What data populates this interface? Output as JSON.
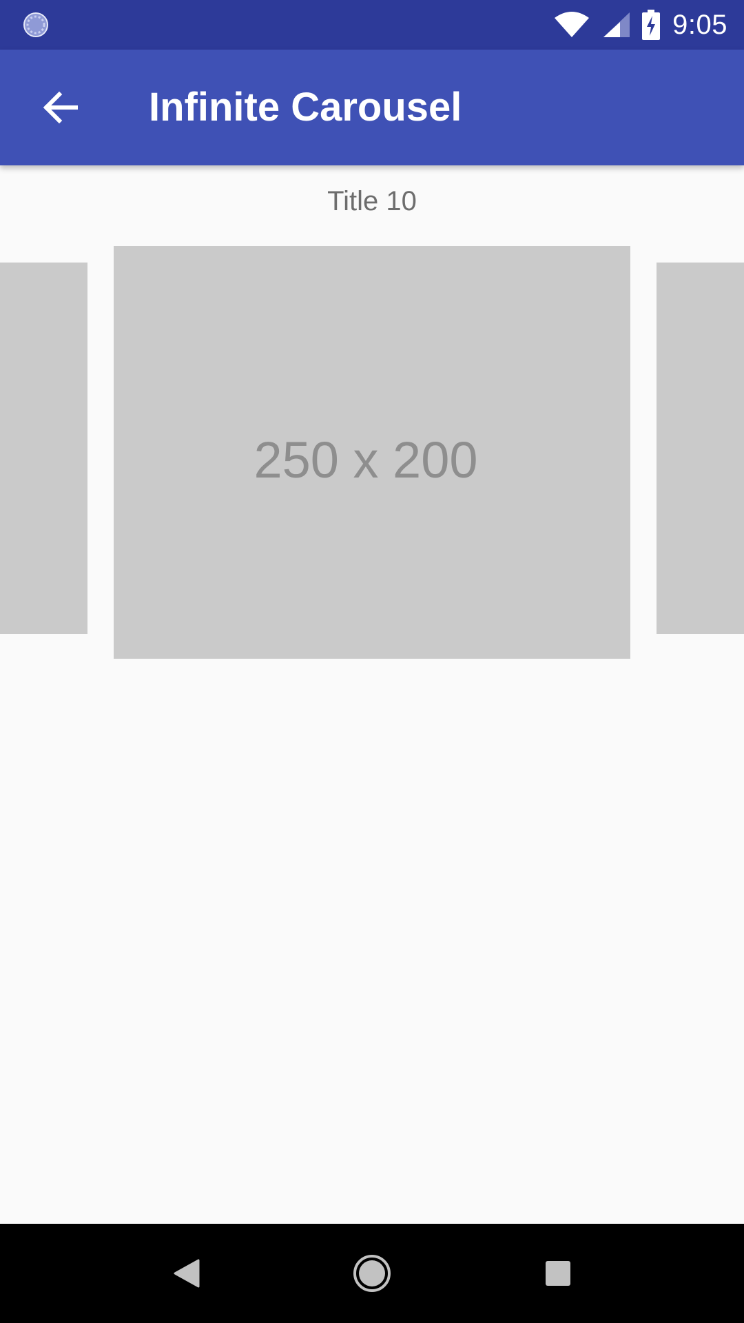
{
  "status_bar": {
    "time": "9:05",
    "left_icon": "loading-spinner-icon",
    "right_icons": [
      "wifi-icon",
      "cellular-signal-icon",
      "battery-charging-icon"
    ],
    "background": "#2d3a99"
  },
  "app_bar": {
    "title": "Infinite Carousel",
    "nav_icon": "back-arrow-icon",
    "background": "#3f51b5"
  },
  "carousel": {
    "title": "Title 10",
    "current_item_label": "250 x 200",
    "placeholder_color": "#cacaca"
  },
  "nav_bar": {
    "buttons": [
      "back-triangle-icon",
      "home-circle-icon",
      "recents-square-icon"
    ],
    "background": "#000000"
  }
}
